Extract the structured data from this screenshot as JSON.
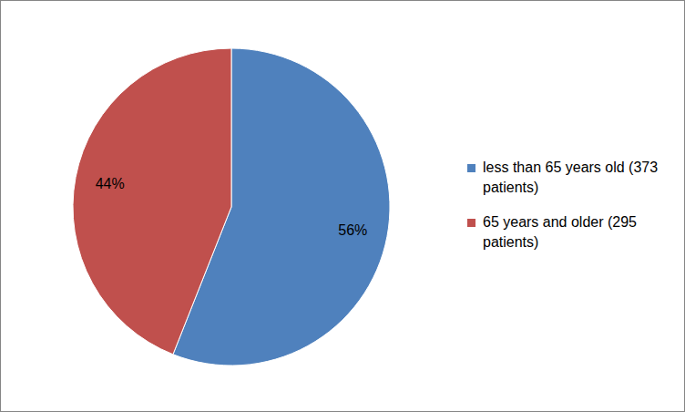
{
  "chart_data": {
    "type": "pie",
    "categories": [
      "less than 65 years old (373 patients)",
      "65 years and older (295 patients)"
    ],
    "values": [
      56,
      44
    ],
    "value_labels": [
      "56%",
      "44%"
    ],
    "colors": [
      "#4f81bd",
      "#c0504d"
    ],
    "data_labels": true,
    "legend": "right"
  }
}
